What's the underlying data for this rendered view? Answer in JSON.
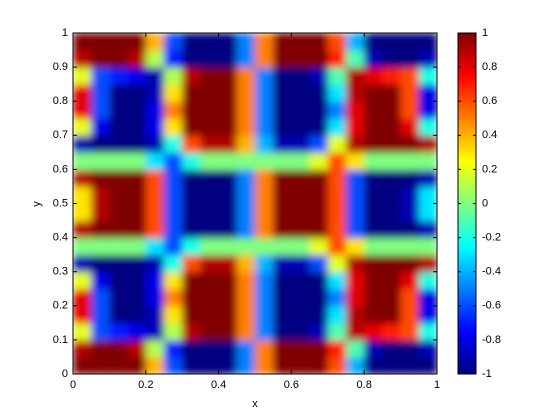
{
  "chart_data": {
    "type": "heatmap",
    "xlabel": "x",
    "ylabel": "y",
    "xlim": [
      0,
      1
    ],
    "ylim": [
      0,
      1
    ],
    "xticks": [
      0,
      0.2,
      0.4,
      0.6,
      0.8,
      1
    ],
    "yticks": [
      0,
      0.1,
      0.2,
      0.3,
      0.4,
      0.5,
      0.6,
      0.7,
      0.8,
      0.9,
      1
    ],
    "colormap": "jet",
    "clim": [
      -1,
      1
    ],
    "cticks": [
      -1,
      -0.8,
      -0.6,
      -0.4,
      -0.2,
      0,
      0.2,
      0.4,
      0.6,
      0.8,
      1
    ],
    "z": [
      [
        1,
        1,
        1,
        1,
        0.4,
        -0.6,
        -1,
        -1,
        -1,
        -0.5,
        0.5,
        1,
        1,
        1,
        0.6,
        -0.4,
        -1,
        -1,
        -1,
        -1
      ],
      [
        0.9,
        1,
        1,
        0.9,
        0.1,
        -0.7,
        -1,
        -1,
        -1,
        -0.5,
        0.5,
        1,
        1,
        1,
        0.7,
        -0.1,
        -0.9,
        -1,
        -1,
        -0.9
      ],
      [
        0.2,
        -0.6,
        -0.7,
        -0.8,
        -0.9,
        0.1,
        0.9,
        1,
        1,
        0.5,
        -0.5,
        -1,
        -1,
        -0.9,
        -0.1,
        0.9,
        0.8,
        0.7,
        0.6,
        -0.2
      ],
      [
        0.8,
        -0.6,
        -1,
        -1,
        -0.9,
        0.3,
        1,
        1,
        1,
        0.5,
        -0.5,
        -1,
        -1,
        -1,
        -0.3,
        0.9,
        1,
        1,
        0.6,
        -0.8
      ],
      [
        0.8,
        -0.6,
        -1,
        -1,
        -0.8,
        0.5,
        1,
        1,
        1,
        0.5,
        -0.5,
        -1,
        -1,
        -1,
        -0.5,
        0.8,
        1,
        1,
        0.6,
        -0.8
      ],
      [
        0.2,
        -0.8,
        -1,
        -1,
        -0.8,
        0.3,
        1,
        1,
        1,
        0.5,
        -0.5,
        -1,
        -1,
        -1,
        -0.3,
        0.8,
        1,
        1,
        0.8,
        -0.2
      ],
      [
        -0.9,
        -1,
        -1,
        -1,
        -0.9,
        -0.2,
        0.6,
        0.9,
        0.9,
        0.4,
        -0.4,
        -0.9,
        -0.9,
        -0.6,
        0.2,
        0.9,
        1,
        1,
        1,
        0.9
      ],
      [
        0,
        0,
        0,
        0,
        -0.3,
        -0.6,
        -0.2,
        0,
        0,
        0,
        0,
        0,
        0,
        0.2,
        0.6,
        0.3,
        0,
        0,
        0,
        0
      ],
      [
        0.9,
        1,
        1,
        1,
        0.6,
        -0.6,
        -1,
        -1,
        -1,
        -0.5,
        0.5,
        1,
        1,
        1,
        0.6,
        -0.6,
        -1,
        -1,
        -1,
        -0.9
      ],
      [
        0.3,
        0.9,
        1,
        1,
        0.6,
        -0.6,
        -1,
        -1,
        -1,
        -0.5,
        0.5,
        1,
        1,
        1,
        0.6,
        -0.6,
        -1,
        -1,
        -0.9,
        -0.3
      ],
      [
        0.3,
        0.9,
        1,
        1,
        0.6,
        -0.6,
        -1,
        -1,
        -1,
        -0.5,
        0.5,
        1,
        1,
        1,
        0.6,
        -0.6,
        -1,
        -1,
        -0.9,
        -0.3
      ],
      [
        0.9,
        1,
        1,
        1,
        0.6,
        -0.6,
        -1,
        -1,
        -1,
        -0.5,
        0.5,
        1,
        1,
        1,
        0.6,
        -0.6,
        -1,
        -1,
        -1,
        -0.9
      ],
      [
        0,
        0,
        0,
        0,
        -0.3,
        -0.6,
        -0.2,
        0,
        0,
        0,
        0,
        0,
        0,
        0.2,
        0.6,
        0.3,
        0,
        0,
        0,
        0
      ],
      [
        -0.9,
        -1,
        -1,
        -1,
        -0.9,
        -0.2,
        0.6,
        0.9,
        0.9,
        0.4,
        -0.4,
        -0.9,
        -0.9,
        -0.6,
        0.2,
        0.9,
        1,
        1,
        1,
        0.9
      ],
      [
        0.2,
        -0.8,
        -1,
        -1,
        -0.8,
        0.3,
        1,
        1,
        1,
        0.5,
        -0.5,
        -1,
        -1,
        -1,
        -0.3,
        0.8,
        1,
        1,
        0.8,
        -0.2
      ],
      [
        0.8,
        -0.6,
        -1,
        -1,
        -0.8,
        0.5,
        1,
        1,
        1,
        0.5,
        -0.5,
        -1,
        -1,
        -1,
        -0.5,
        0.8,
        1,
        1,
        0.6,
        -0.8
      ],
      [
        0.8,
        -0.6,
        -1,
        -1,
        -0.9,
        0.3,
        1,
        1,
        1,
        0.5,
        -0.5,
        -1,
        -1,
        -1,
        -0.3,
        0.9,
        1,
        1,
        0.6,
        -0.8
      ],
      [
        0.2,
        -0.6,
        -0.7,
        -0.8,
        -0.9,
        0.1,
        0.9,
        1,
        1,
        0.5,
        -0.5,
        -1,
        -1,
        -0.9,
        -0.1,
        0.9,
        0.8,
        0.7,
        0.6,
        -0.2
      ],
      [
        0.9,
        1,
        1,
        0.9,
        0.1,
        -0.7,
        -1,
        -1,
        -1,
        -0.5,
        0.5,
        1,
        1,
        1,
        0.7,
        -0.1,
        -0.9,
        -1,
        -1,
        -0.9
      ],
      [
        1,
        1,
        1,
        1,
        0.4,
        -0.6,
        -1,
        -1,
        -1,
        -0.5,
        0.5,
        1,
        1,
        1,
        0.6,
        -0.4,
        -1,
        -1,
        -1,
        -1
      ]
    ]
  }
}
